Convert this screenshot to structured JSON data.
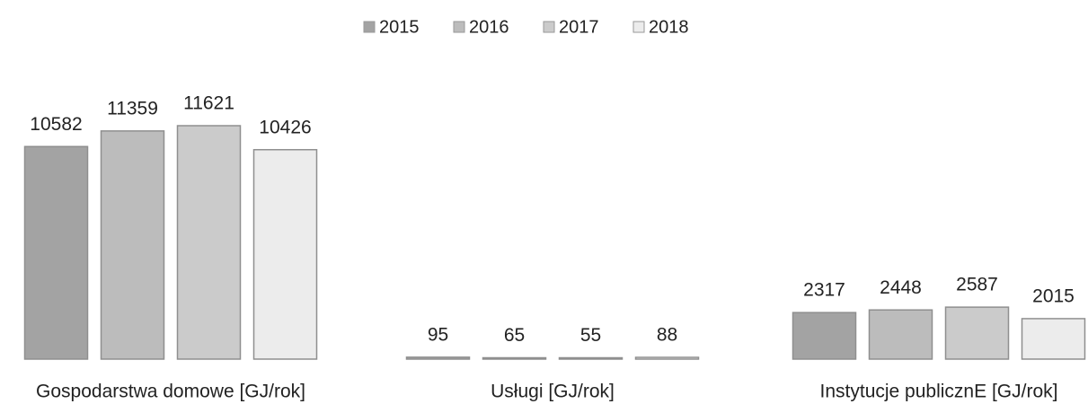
{
  "chart_data": {
    "type": "bar",
    "categories": [
      "Gospodarstwa domowe [GJ/rok]",
      "Usługi [GJ/rok]",
      "Instytucje publicznE [GJ/rok]"
    ],
    "series": [
      {
        "name": "2015",
        "color": "#a3a3a3",
        "values": [
          10582,
          95,
          2317
        ]
      },
      {
        "name": "2016",
        "color": "#bcbcbc",
        "values": [
          11359,
          65,
          2448
        ]
      },
      {
        "name": "2017",
        "color": "#cbcbcb",
        "values": [
          11621,
          55,
          2587
        ]
      },
      {
        "name": "2018",
        "color": "#ececec",
        "values": [
          10426,
          88,
          2015
        ]
      }
    ],
    "legend": "top"
  }
}
